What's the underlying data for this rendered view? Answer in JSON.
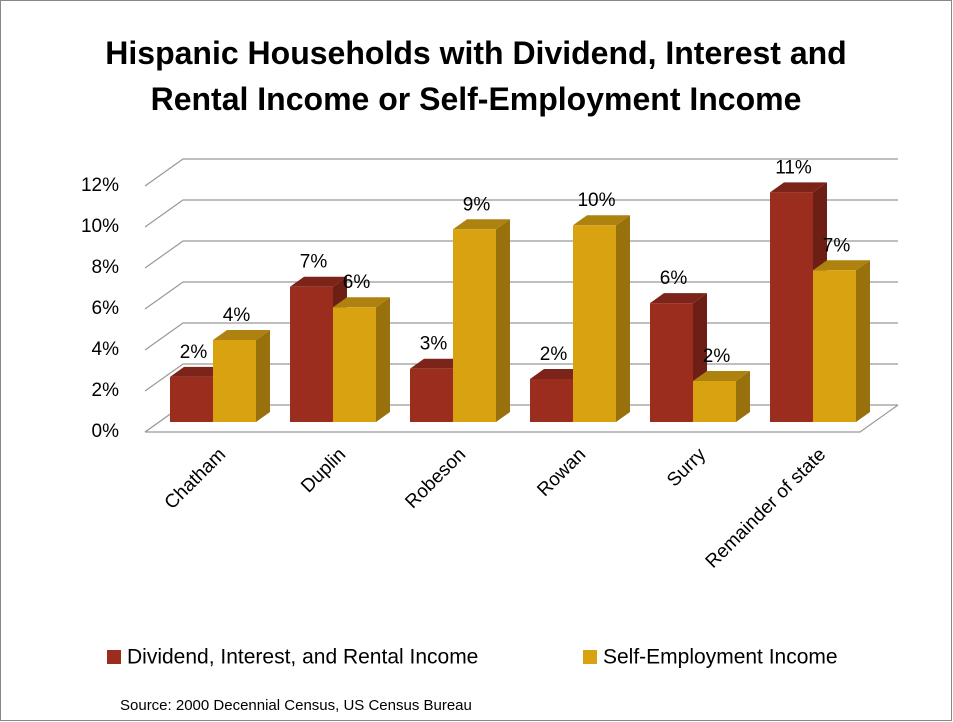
{
  "chart_data": {
    "type": "bar3d",
    "title": "Hispanic Households with Dividend, Interest and Rental Income or Self-Employment Income",
    "categories": [
      "Chatham",
      "Duplin",
      "Robeson",
      "Rowan",
      "Surry",
      "Remainder of state"
    ],
    "series": [
      {
        "name": "Dividend, Interest, and Rental Income",
        "color": "#9b2d1f",
        "values": [
          2.2,
          6.6,
          2.6,
          2.1,
          5.8,
          11.2
        ],
        "value_labels": [
          "2%",
          "7%",
          "3%",
          "2%",
          "6%",
          "11%"
        ]
      },
      {
        "name": "Self-Employment Income",
        "color": "#d9a211",
        "values": [
          4.0,
          5.6,
          9.4,
          9.6,
          2.0,
          7.4
        ],
        "value_labels": [
          "4%",
          "6%",
          "9%",
          "10%",
          "2%",
          "7%"
        ]
      }
    ],
    "ylim": [
      0,
      12
    ],
    "yticks": [
      {
        "value": 0,
        "label": "0%"
      },
      {
        "value": 2,
        "label": "2%"
      },
      {
        "value": 4,
        "label": "4%"
      },
      {
        "value": 6,
        "label": "6%"
      },
      {
        "value": 8,
        "label": "8%"
      },
      {
        "value": 10,
        "label": "10%"
      },
      {
        "value": 12,
        "label": "12%"
      }
    ],
    "grid": true,
    "legend": "bottom",
    "source": "Source: 2000 Decennial Census, US Census Bureau"
  }
}
